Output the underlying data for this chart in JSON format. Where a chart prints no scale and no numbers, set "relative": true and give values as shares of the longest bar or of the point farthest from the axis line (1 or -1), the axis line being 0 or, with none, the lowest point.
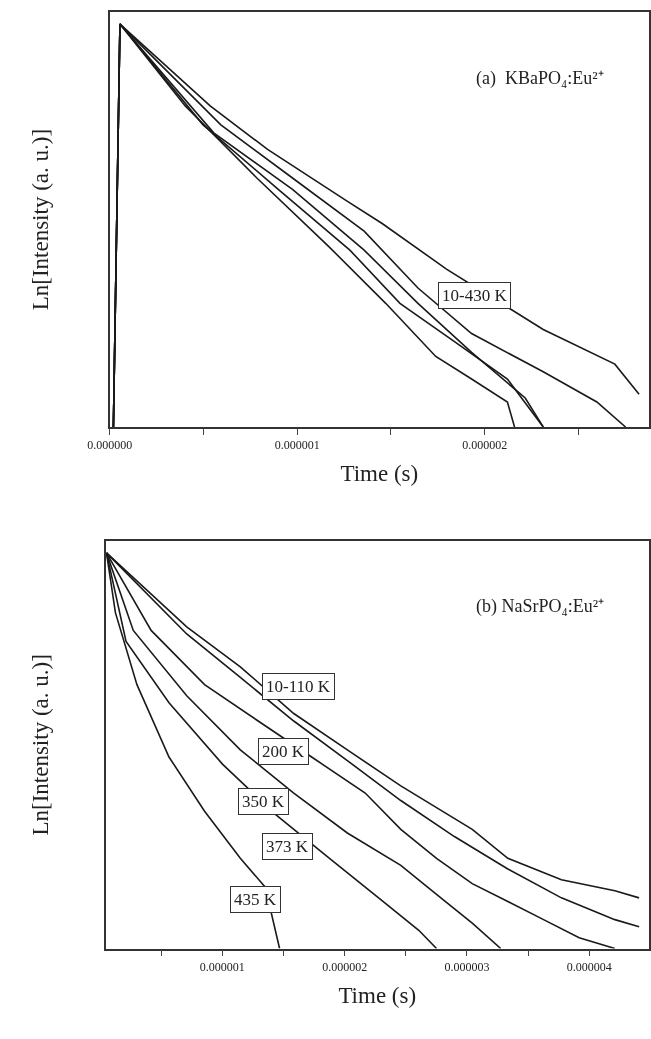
{
  "chart_data": [
    {
      "type": "line",
      "relative": true,
      "tick_labels": "x",
      "line_style": "solid",
      "xlabel": "Time (s)",
      "ylabel": "Ln[Intensity (a. u.)]",
      "xlim": [
        0,
        2.876e-06
      ],
      "xticks": [
        {
          "value": 0,
          "label": "0.000000"
        },
        {
          "value": 5e-07,
          "label": null
        },
        {
          "value": 1e-06,
          "label": "0.000001"
        },
        {
          "value": 1.5e-06,
          "label": null
        },
        {
          "value": 2e-06,
          "label": "0.000002"
        },
        {
          "value": 2.5e-06,
          "label": null
        }
      ],
      "annotations": [
        "(a)  KBaPO₄:Eu²⁺",
        "10-430 K"
      ],
      "series": [
        {
          "color": "#1a1a1a",
          "x": [
            2e-08,
            5.5e-08,
            5.36e-07,
            8.42e-07,
            1.262e-06,
            1.453e-06,
            1.796e-06,
            2.312e-06,
            2.694e-06,
            2.823e-06
          ],
          "values": [
            0,
            1,
            0.797,
            0.689,
            0.562,
            0.505,
            0.392,
            0.242,
            0.156,
            0.081
          ]
        },
        {
          "color": "#1a1a1a",
          "x": [
            2e-08,
            5.5e-08,
            5.93e-07,
            9.75e-07,
            1.357e-06,
            1.644e-06,
            1.93e-06,
            2.312e-06,
            2.598e-06,
            2.751e-06
          ],
          "values": [
            0,
            1,
            0.75,
            0.618,
            0.486,
            0.345,
            0.232,
            0.137,
            0.062,
            0
          ]
        },
        {
          "color": "#1a1a1a",
          "x": [
            2e-08,
            5.5e-08,
            5.55e-07,
            9.75e-07,
            1.357e-06,
            1.644e-06,
            1.93e-06,
            2.216e-06,
            2.312e-06
          ],
          "values": [
            0,
            1,
            0.73,
            0.59,
            0.439,
            0.307,
            0.185,
            0.072,
            0
          ]
        },
        {
          "color": "#1a1a1a",
          "x": [
            2e-08,
            5.5e-08,
            4.98e-07,
            8.99e-07,
            1.281e-06,
            1.548e-06,
            1.835e-06,
            2.121e-06,
            2.312e-06
          ],
          "values": [
            0,
            1,
            0.75,
            0.59,
            0.439,
            0.307,
            0.213,
            0.119,
            0
          ]
        },
        {
          "color": "#1a1a1a",
          "x": [
            2e-08,
            5.5e-08,
            4.03e-07,
            7.85e-07,
            1.166e-06,
            1.472e-06,
            1.739e-06,
            1.93e-06,
            2.121e-06,
            2.159e-06
          ],
          "values": [
            0,
            1,
            0.797,
            0.618,
            0.449,
            0.307,
            0.175,
            0.119,
            0.062,
            0
          ]
        }
      ]
    },
    {
      "type": "line",
      "relative": true,
      "tick_labels": "x",
      "line_style": "solid",
      "xlabel": "Time (s)",
      "ylabel": "Ln[Intensity (a. u.)]",
      "xlim": [
        4.5e-08,
        4.488e-06
      ],
      "xticks": [
        {
          "value": 5e-07,
          "label": null
        },
        {
          "value": 1e-06,
          "label": "0.000001"
        },
        {
          "value": 1.5e-06,
          "label": null
        },
        {
          "value": 2e-06,
          "label": "0.000002"
        },
        {
          "value": 2.5e-06,
          "label": null
        },
        {
          "value": 3e-06,
          "label": "0.000003"
        },
        {
          "value": 3.5e-06,
          "label": null
        },
        {
          "value": 4e-06,
          "label": "0.000004"
        }
      ],
      "annotations": [
        "(b) NaSrPO₄:Eu²⁺",
        "10-110 K",
        "200 K",
        "350 K",
        "373 K",
        "435 K"
      ],
      "series": [
        {
          "color": "#1a1a1a",
          "x": [
            5.3e-08,
            7.09e-07,
            1.147e-06,
            1.584e-06,
            2.022e-06,
            2.459e-06,
            2.751e-06,
            3.043e-06,
            3.334e-06,
            3.772e-06,
            4.209e-06,
            4.407e-06
          ],
          "values": [
            1,
            0.813,
            0.712,
            0.594,
            0.502,
            0.411,
            0.356,
            0.301,
            0.228,
            0.174,
            0.146,
            0.128
          ]
        },
        {
          "color": "#1a1a1a",
          "x": [
            5.3e-08,
            7.09e-07,
            1.147e-06,
            1.584e-06,
            2.022e-06,
            2.459e-06,
            2.897e-06,
            3.334e-06,
            3.772e-06,
            4.209e-06,
            4.407e-06
          ],
          "values": [
            1,
            0.795,
            0.685,
            0.575,
            0.475,
            0.374,
            0.283,
            0.201,
            0.128,
            0.073,
            0.055
          ]
        },
        {
          "color": "#1a1a1a",
          "x": [
            5.3e-08,
            4.18e-07,
            8.55e-07,
            1.293e-06,
            1.73e-06,
            2.168e-06,
            2.459e-06,
            2.751e-06,
            3.043e-06,
            3.334e-06,
            3.626e-06,
            3.917e-06,
            4.209e-06
          ],
          "values": [
            1,
            0.804,
            0.667,
            0.575,
            0.484,
            0.393,
            0.301,
            0.228,
            0.164,
            0.119,
            0.073,
            0.027,
            0
          ]
        },
        {
          "color": "#1a1a1a",
          "x": [
            5.3e-08,
            2.72e-07,
            7.09e-07,
            1.147e-06,
            1.584e-06,
            2.022e-06,
            2.459e-06,
            2.751e-06,
            3.043e-06,
            3.276e-06
          ],
          "values": [
            1,
            0.804,
            0.639,
            0.502,
            0.393,
            0.292,
            0.21,
            0.137,
            0.064,
            0
          ]
        },
        {
          "color": "#1a1a1a",
          "x": [
            5.3e-08,
            2.13e-07,
            5.64e-07,
            1.001e-06,
            1.439e-06,
            1.876e-06,
            2.313e-06,
            2.606e-06,
            2.751e-06
          ],
          "values": [
            1,
            0.776,
            0.621,
            0.466,
            0.338,
            0.228,
            0.119,
            0.046,
            0
          ]
        },
        {
          "color": "#1a1a1a",
          "x": [
            5.3e-08,
            1.26e-07,
            3.02e-07,
            5.64e-07,
            8.55e-07,
            1.147e-06,
            1.351e-06,
            1.468e-06
          ],
          "values": [
            1,
            0.849,
            0.667,
            0.484,
            0.347,
            0.228,
            0.155,
            0
          ]
        }
      ]
    }
  ]
}
